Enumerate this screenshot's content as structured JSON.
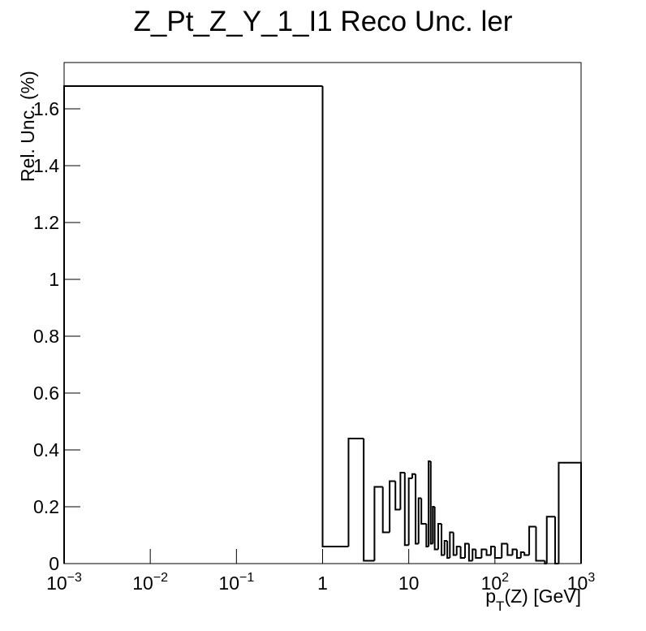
{
  "chart_data": {
    "type": "histogram",
    "title": "Z_Pt_Z_Y_1_I1 Reco Unc. ler",
    "xlabel": [
      "p",
      "T",
      "(Z) [GeV]"
    ],
    "ylabel": "Rel. Unc. (%)",
    "xscale": "log",
    "color": "#000000",
    "bins": [
      0.001,
      1,
      2,
      3,
      4,
      5,
      6,
      7,
      8,
      9,
      10,
      11,
      12,
      13,
      14,
      15,
      16,
      17,
      18,
      19,
      20,
      22,
      24,
      26,
      28,
      30,
      33,
      36,
      40,
      45,
      50,
      55,
      60,
      70,
      80,
      90,
      100,
      120,
      140,
      160,
      180,
      200,
      220,
      250,
      300,
      380,
      400,
      500,
      550,
      1000
    ],
    "counts": [
      1.68,
      0.06,
      0.44,
      0.01,
      0.27,
      0.11,
      0.29,
      0.19,
      0.32,
      0.065,
      0.3,
      0.315,
      0.07,
      0.23,
      0.14,
      0.14,
      0.06,
      0.36,
      0.07,
      0.2,
      0.05,
      0.14,
      0.03,
      0.08,
      0.02,
      0.11,
      0.03,
      0.06,
      0.02,
      0.07,
      0.01,
      0.05,
      0.02,
      0.05,
      0.03,
      0.06,
      0.02,
      0.07,
      0.03,
      0.05,
      0.02,
      0.04,
      0.03,
      0.13,
      0.01,
      0,
      0.165,
      0,
      0.355
    ],
    "xlim": [
      0.001,
      1000
    ],
    "ylim": [
      0,
      1.763
    ],
    "xticks": [
      {
        "value": 0.001,
        "label": [
          "10",
          "−3"
        ]
      },
      {
        "value": 0.01,
        "label": [
          "10",
          "−2"
        ]
      },
      {
        "value": 0.1,
        "label": [
          "10",
          "−1"
        ]
      },
      1,
      10,
      {
        "value": 100,
        "label": [
          "10",
          "2"
        ]
      },
      {
        "value": 1000,
        "label": [
          "10",
          "3"
        ]
      }
    ],
    "yticks": [
      0,
      0.2,
      0.4,
      0.6,
      0.8,
      1,
      1.2,
      1.4,
      1.6
    ]
  }
}
